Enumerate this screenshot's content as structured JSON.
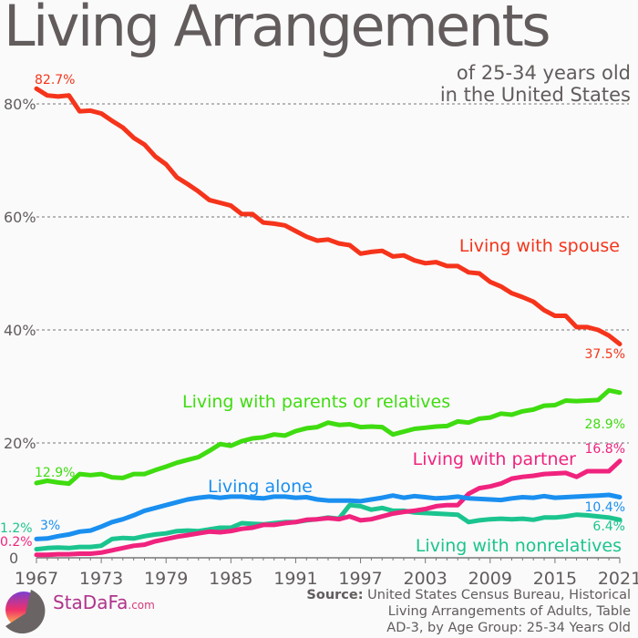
{
  "title": "Living Arrangements",
  "subtitle_line1": "of 25-34 years old",
  "subtitle_line2": "in the United States",
  "source_label": "Source:",
  "source_text": [
    "United States Census Bureau, Historical",
    "Living Arrangements of Adults, Table",
    "AD-3, by Age Group: 25-34 Years Old"
  ],
  "brand": {
    "name": "StaDaFa",
    "tld": ".com"
  },
  "chart_data": {
    "type": "line",
    "xlim": [
      1967,
      2021
    ],
    "ylim": [
      0,
      84
    ],
    "x_ticks": [
      1967,
      1973,
      1979,
      1985,
      1991,
      1997,
      2003,
      2009,
      2015,
      2021
    ],
    "y_ticks": [
      {
        "v": 0,
        "label": "0"
      },
      {
        "v": 20,
        "label": "20%"
      },
      {
        "v": 40,
        "label": "40%"
      },
      {
        "v": 60,
        "label": "60%"
      },
      {
        "v": 80,
        "label": "80%"
      }
    ],
    "grid": "horizontal dashed",
    "series": [
      {
        "name": "Living with spouse",
        "color": "#f5341b",
        "start_label": "82.7%",
        "end_label": "37.5%",
        "values": [
          82.7,
          81.5,
          81.3,
          81.5,
          78.7,
          78.8,
          78.3,
          77,
          75.8,
          74,
          72.8,
          70.7,
          69.3,
          67,
          65.8,
          64.5,
          63,
          62.5,
          62,
          60.5,
          60.5,
          59,
          58.8,
          58.5,
          57.5,
          56.5,
          55.8,
          56,
          55.3,
          55,
          53.5,
          53.8,
          54,
          53,
          53.2,
          52.3,
          51.8,
          52,
          51.3,
          51.3,
          50.2,
          50,
          48.5,
          47.7,
          46.5,
          45.8,
          45,
          43.5,
          42.5,
          42.5,
          40.5,
          40.5,
          40,
          39,
          37.5
        ]
      },
      {
        "name": "Living with parents or relatives",
        "color": "#3fdc10",
        "start_label": "12.9%",
        "end_label": "28.9%",
        "values": [
          12.9,
          13.3,
          13,
          12.8,
          14.5,
          14.3,
          14.5,
          13.9,
          13.8,
          14.5,
          14.5,
          15.2,
          15.8,
          16.5,
          17,
          17.5,
          18.6,
          19.8,
          19.5,
          20.3,
          20.8,
          21,
          21.5,
          21.3,
          22.1,
          22.6,
          22.8,
          23.6,
          23.2,
          23.3,
          22.8,
          22.9,
          22.8,
          21.5,
          22,
          22.5,
          22.7,
          22.9,
          23,
          23.8,
          23.6,
          24.3,
          24.5,
          25.2,
          25,
          25.6,
          25.9,
          26.6,
          26.7,
          27.5,
          27.4,
          27.5,
          27.6,
          29.3,
          28.9
        ]
      },
      {
        "name": "Living alone",
        "color": "#1a8ff0",
        "start_label": "3%",
        "end_label": "10.4%",
        "values": [
          3,
          3.1,
          3.5,
          3.8,
          4.3,
          4.5,
          5.2,
          6,
          6.5,
          7.2,
          8,
          8.5,
          9,
          9.5,
          10,
          10.3,
          10.5,
          10.3,
          10.5,
          10.5,
          10.3,
          10.2,
          10.5,
          10.5,
          10.3,
          10.4,
          10,
          9.8,
          9.8,
          9.8,
          9.7,
          10,
          10.3,
          10.7,
          10.3,
          10.6,
          10.4,
          10.2,
          10.3,
          10.5,
          10.2,
          10.1,
          10,
          9.9,
          10.2,
          10.4,
          10.3,
          10.6,
          10.3,
          10.4,
          10.5,
          10.6,
          10.7,
          10.8,
          10.4
        ]
      },
      {
        "name": "Living with partner",
        "color": "#f0237e",
        "start_label": "0.2%",
        "end_label": "16.8%",
        "values": [
          0.2,
          0.2,
          0.3,
          0.3,
          0.4,
          0.4,
          0.6,
          1,
          1.4,
          1.8,
          2,
          2.6,
          3,
          3.4,
          3.7,
          4,
          4.3,
          4.2,
          4.4,
          4.8,
          5,
          5.5,
          5.5,
          5.8,
          6,
          6.4,
          6.5,
          6.7,
          6.5,
          7,
          6.3,
          6.5,
          7,
          7.5,
          7.8,
          8,
          8.3,
          8.8,
          9,
          9,
          11,
          12,
          12.3,
          12.8,
          13.7,
          14,
          14.2,
          14.5,
          14.6,
          14.7,
          14,
          15,
          15,
          15,
          16.8
        ]
      },
      {
        "name": "Living with nonrelatives",
        "color": "#1bc48e",
        "start_label": "1.2%",
        "end_label": "6.4%",
        "values": [
          1.2,
          1.4,
          1.5,
          1.4,
          1.6,
          1.6,
          1.8,
          3,
          3.2,
          3.1,
          3.5,
          3.8,
          4,
          4.4,
          4.5,
          4.4,
          4.7,
          5,
          5,
          5.8,
          5.7,
          5.6,
          5.8,
          6,
          6,
          6.3,
          6.5,
          6.8,
          6.6,
          9,
          8.8,
          8.2,
          8.5,
          8,
          8,
          7.7,
          7.6,
          7.5,
          7.4,
          7.3,
          6,
          6.3,
          6.5,
          6.6,
          6.5,
          6.6,
          6.4,
          6.8,
          6.8,
          7,
          7.3,
          7.2,
          7,
          6.8,
          6.4
        ]
      }
    ]
  }
}
